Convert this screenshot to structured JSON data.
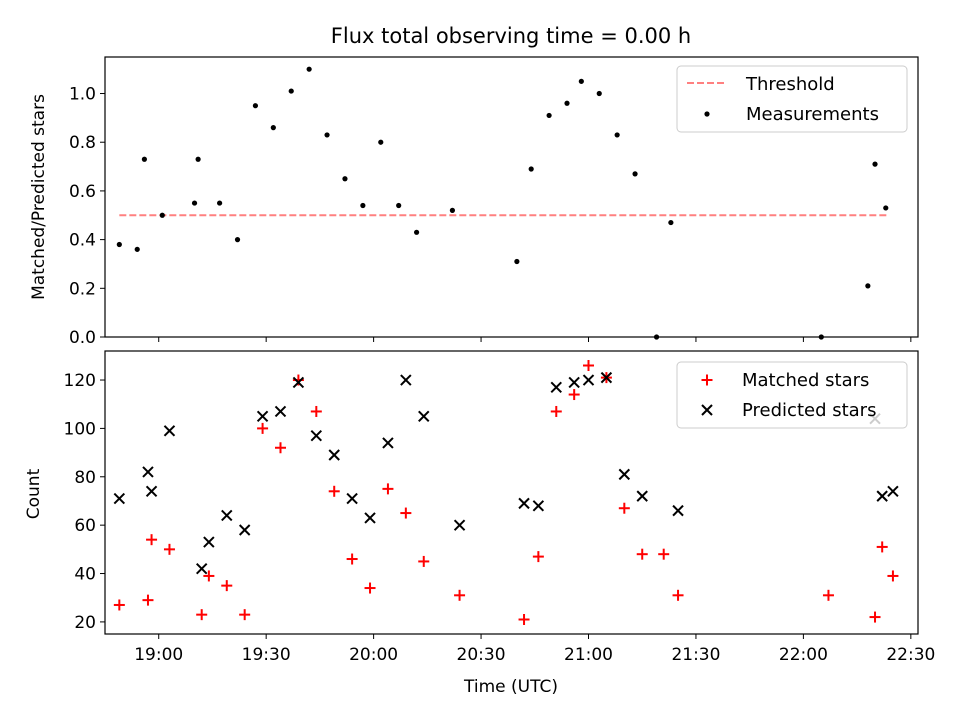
{
  "chart_data": [
    {
      "type": "scatter",
      "title": "Flux total observing time = 0.00 h",
      "xlabel": "",
      "ylabel": "Matched/Predicted stars",
      "ylim": [
        0,
        1.15
      ],
      "xlim": [
        "18:45",
        "22:32"
      ],
      "yticks": [
        "0.0",
        "0.2",
        "0.4",
        "0.6",
        "0.8",
        "1.0"
      ],
      "legend_position": "top-right",
      "threshold": {
        "name": "Threshold",
        "value": 0.5,
        "x_start": "18:49",
        "x_end": "22:24",
        "color": "#ff8080",
        "style": "dashed"
      },
      "series": [
        {
          "name": "Measurements",
          "color": "#000000",
          "marker": "dot",
          "points": [
            [
              "18:49",
              0.38
            ],
            [
              "18:54",
              0.36
            ],
            [
              "18:56",
              0.73
            ],
            [
              "19:01",
              0.5
            ],
            [
              "19:10",
              0.55
            ],
            [
              "19:11",
              0.73
            ],
            [
              "19:17",
              0.55
            ],
            [
              "19:22",
              0.4
            ],
            [
              "19:27",
              0.95
            ],
            [
              "19:32",
              0.86
            ],
            [
              "19:37",
              1.01
            ],
            [
              "19:42",
              1.1
            ],
            [
              "19:47",
              0.83
            ],
            [
              "19:52",
              0.65
            ],
            [
              "19:57",
              0.54
            ],
            [
              "20:02",
              0.8
            ],
            [
              "20:07",
              0.54
            ],
            [
              "20:12",
              0.43
            ],
            [
              "20:22",
              0.52
            ],
            [
              "20:40",
              0.31
            ],
            [
              "20:44",
              0.69
            ],
            [
              "20:49",
              0.91
            ],
            [
              "20:54",
              0.96
            ],
            [
              "20:58",
              1.05
            ],
            [
              "21:03",
              1.0
            ],
            [
              "21:08",
              0.83
            ],
            [
              "21:13",
              0.67
            ],
            [
              "21:19",
              0.0
            ],
            [
              "21:23",
              0.47
            ],
            [
              "22:05",
              0.0
            ],
            [
              "22:18",
              0.21
            ],
            [
              "22:20",
              0.71
            ],
            [
              "22:23",
              0.53
            ]
          ]
        }
      ]
    },
    {
      "type": "scatter",
      "title": "",
      "xlabel": "Time (UTC)",
      "ylabel": "Count",
      "ylim": [
        15,
        132
      ],
      "xlim": [
        "18:45",
        "22:32"
      ],
      "xticks": [
        "19:00",
        "19:30",
        "20:00",
        "20:30",
        "21:00",
        "21:30",
        "22:00",
        "22:30"
      ],
      "yticks": [
        "20",
        "40",
        "60",
        "80",
        "100",
        "120"
      ],
      "legend_position": "top-right",
      "series": [
        {
          "name": "Matched stars",
          "color": "#ff0000",
          "marker": "plus",
          "points": [
            [
              "18:49",
              27
            ],
            [
              "18:57",
              29
            ],
            [
              "18:58",
              54
            ],
            [
              "19:03",
              50
            ],
            [
              "19:12",
              23
            ],
            [
              "19:14",
              39
            ],
            [
              "19:19",
              35
            ],
            [
              "19:24",
              23
            ],
            [
              "19:29",
              100
            ],
            [
              "19:34",
              92
            ],
            [
              "19:39",
              120
            ],
            [
              "19:44",
              107
            ],
            [
              "19:49",
              74
            ],
            [
              "19:54",
              46
            ],
            [
              "19:59",
              34
            ],
            [
              "20:04",
              75
            ],
            [
              "20:09",
              65
            ],
            [
              "20:14",
              45
            ],
            [
              "20:24",
              31
            ],
            [
              "20:42",
              21
            ],
            [
              "20:46",
              47
            ],
            [
              "20:51",
              107
            ],
            [
              "20:56",
              114
            ],
            [
              "21:00",
              126
            ],
            [
              "21:05",
              121
            ],
            [
              "21:10",
              67
            ],
            [
              "21:15",
              48
            ],
            [
              "21:21",
              48
            ],
            [
              "21:25",
              31
            ],
            [
              "22:07",
              31
            ],
            [
              "22:20",
              22
            ],
            [
              "22:22",
              51
            ],
            [
              "22:25",
              39
            ]
          ]
        },
        {
          "name": "Predicted stars",
          "color": "#000000",
          "marker": "x",
          "points": [
            [
              "18:49",
              71
            ],
            [
              "18:57",
              82
            ],
            [
              "18:58",
              74
            ],
            [
              "19:03",
              99
            ],
            [
              "19:12",
              42
            ],
            [
              "19:14",
              53
            ],
            [
              "19:19",
              64
            ],
            [
              "19:24",
              58
            ],
            [
              "19:29",
              105
            ],
            [
              "19:34",
              107
            ],
            [
              "19:39",
              119
            ],
            [
              "19:44",
              97
            ],
            [
              "19:49",
              89
            ],
            [
              "19:54",
              71
            ],
            [
              "19:59",
              63
            ],
            [
              "20:04",
              94
            ],
            [
              "20:09",
              120
            ],
            [
              "20:14",
              105
            ],
            [
              "20:24",
              60
            ],
            [
              "20:42",
              69
            ],
            [
              "20:46",
              68
            ],
            [
              "20:51",
              117
            ],
            [
              "20:56",
              119
            ],
            [
              "21:00",
              120
            ],
            [
              "21:05",
              121
            ],
            [
              "21:10",
              81
            ],
            [
              "21:15",
              72
            ],
            [
              "21:25",
              66
            ],
            [
              "22:20",
              104
            ],
            [
              "22:22",
              72
            ],
            [
              "22:25",
              74
            ]
          ]
        }
      ]
    }
  ]
}
